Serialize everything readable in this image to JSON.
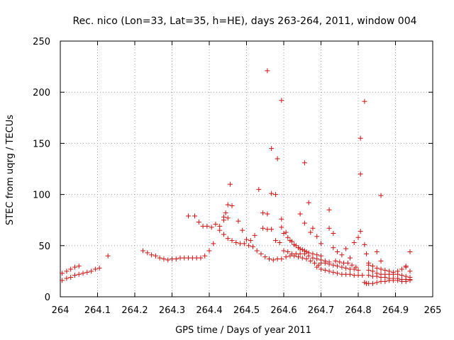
{
  "chart_data": {
    "type": "scatter",
    "title": "Rec. nico (Lon=33, Lat=35, h=HE), days 263-264, 2011, window 004",
    "xlabel": "GPS time / Days of year 2011",
    "ylabel": "STEC from uqrg / TECUs",
    "xlim": [
      264,
      265
    ],
    "ylim": [
      0,
      250
    ],
    "x_ticks": [
      264,
      264.1,
      264.2,
      264.3,
      264.4,
      264.5,
      264.6,
      264.7,
      264.8,
      264.9,
      265
    ],
    "y_ticks": [
      0,
      50,
      100,
      150,
      200,
      250
    ],
    "grid": true,
    "marker": "+",
    "colors": {
      "series": "#d01010",
      "grid": "#a0a0a0",
      "axis": "#000000"
    },
    "series": [
      {
        "name": "STEC",
        "points": [
          [
            264.005,
            16
          ],
          [
            264.017,
            18
          ],
          [
            264.028,
            19
          ],
          [
            264.039,
            21
          ],
          [
            264.05,
            22
          ],
          [
            264.061,
            23
          ],
          [
            264.072,
            24
          ],
          [
            264.083,
            25
          ],
          [
            264.094,
            27
          ],
          [
            264.105,
            28
          ],
          [
            264.005,
            23
          ],
          [
            264.017,
            25
          ],
          [
            264.028,
            27
          ],
          [
            264.039,
            29
          ],
          [
            264.05,
            30
          ],
          [
            264.128,
            40
          ],
          [
            264.222,
            45
          ],
          [
            264.234,
            43
          ],
          [
            264.245,
            41
          ],
          [
            264.256,
            40
          ],
          [
            264.267,
            38
          ],
          [
            264.278,
            37
          ],
          [
            264.289,
            36
          ],
          [
            264.3,
            37
          ],
          [
            264.311,
            37
          ],
          [
            264.322,
            38
          ],
          [
            264.333,
            38
          ],
          [
            264.344,
            38
          ],
          [
            264.355,
            38
          ],
          [
            264.366,
            38
          ],
          [
            264.377,
            38
          ],
          [
            264.388,
            40
          ],
          [
            264.4,
            45
          ],
          [
            264.411,
            52
          ],
          [
            264.344,
            79
          ],
          [
            264.361,
            79
          ],
          [
            264.372,
            73
          ],
          [
            264.383,
            69
          ],
          [
            264.394,
            69
          ],
          [
            264.406,
            68
          ],
          [
            264.417,
            71
          ],
          [
            264.428,
            69
          ],
          [
            264.439,
            75
          ],
          [
            264.45,
            77
          ],
          [
            264.428,
            65
          ],
          [
            264.439,
            61
          ],
          [
            264.45,
            57
          ],
          [
            264.461,
            55
          ],
          [
            264.472,
            53
          ],
          [
            264.483,
            52
          ],
          [
            264.494,
            52
          ],
          [
            264.506,
            50
          ],
          [
            264.517,
            49
          ],
          [
            264.439,
            78
          ],
          [
            264.444,
            82
          ],
          [
            264.45,
            90
          ],
          [
            264.461,
            89
          ],
          [
            264.456,
            110
          ],
          [
            264.478,
            74
          ],
          [
            264.489,
            65
          ],
          [
            264.5,
            56
          ],
          [
            264.511,
            55
          ],
          [
            264.522,
            60
          ],
          [
            264.533,
            105
          ],
          [
            264.544,
            82
          ],
          [
            264.556,
            81
          ],
          [
            264.567,
            101
          ],
          [
            264.578,
            100
          ],
          [
            264.583,
            135
          ],
          [
            264.567,
            145
          ],
          [
            264.556,
            221
          ],
          [
            264.594,
            192
          ],
          [
            264.528,
            45
          ],
          [
            264.539,
            42
          ],
          [
            264.55,
            39
          ],
          [
            264.561,
            37
          ],
          [
            264.572,
            36
          ],
          [
            264.583,
            37
          ],
          [
            264.594,
            37
          ],
          [
            264.606,
            39
          ],
          [
            264.617,
            40
          ],
          [
            264.628,
            40
          ],
          [
            264.639,
            39
          ],
          [
            264.65,
            38
          ],
          [
            264.661,
            37
          ],
          [
            264.672,
            35
          ],
          [
            264.683,
            33
          ],
          [
            264.694,
            31
          ],
          [
            264.544,
            67
          ],
          [
            264.556,
            66
          ],
          [
            264.567,
            66
          ],
          [
            264.578,
            55
          ],
          [
            264.589,
            53
          ],
          [
            264.594,
            76
          ],
          [
            264.6,
            62
          ],
          [
            264.611,
            58
          ],
          [
            264.622,
            54
          ],
          [
            264.633,
            50
          ],
          [
            264.644,
            47
          ],
          [
            264.656,
            45
          ],
          [
            264.667,
            43
          ],
          [
            264.678,
            42
          ],
          [
            264.689,
            41
          ],
          [
            264.7,
            40
          ],
          [
            264.594,
            68
          ],
          [
            264.606,
            63
          ],
          [
            264.617,
            55
          ],
          [
            264.628,
            51
          ],
          [
            264.639,
            48
          ],
          [
            264.65,
            46
          ],
          [
            264.661,
            44
          ],
          [
            264.644,
            81
          ],
          [
            264.656,
            131
          ],
          [
            264.667,
            92
          ],
          [
            264.656,
            72
          ],
          [
            264.678,
            67
          ],
          [
            264.672,
            63
          ],
          [
            264.689,
            59
          ],
          [
            264.7,
            52
          ],
          [
            264.6,
            45
          ],
          [
            264.611,
            44
          ],
          [
            264.622,
            42
          ],
          [
            264.633,
            42
          ],
          [
            264.644,
            42
          ],
          [
            264.656,
            42
          ],
          [
            264.667,
            40
          ],
          [
            264.678,
            38
          ],
          [
            264.689,
            37
          ],
          [
            264.7,
            36
          ],
          [
            264.711,
            35
          ],
          [
            264.722,
            34
          ],
          [
            264.722,
            85
          ],
          [
            264.722,
            67
          ],
          [
            264.733,
            62
          ],
          [
            264.733,
            48
          ],
          [
            264.744,
            44
          ],
          [
            264.756,
            41
          ],
          [
            264.767,
            47
          ],
          [
            264.778,
            38
          ],
          [
            264.789,
            53
          ],
          [
            264.8,
            58
          ],
          [
            264.806,
            64
          ],
          [
            264.806,
            120
          ],
          [
            264.806,
            155
          ],
          [
            264.817,
            191
          ],
          [
            264.817,
            51
          ],
          [
            264.822,
            42
          ],
          [
            264.689,
            29
          ],
          [
            264.7,
            27
          ],
          [
            264.711,
            26
          ],
          [
            264.722,
            25
          ],
          [
            264.733,
            24
          ],
          [
            264.744,
            23
          ],
          [
            264.756,
            22
          ],
          [
            264.767,
            22
          ],
          [
            264.778,
            22
          ],
          [
            264.789,
            21
          ],
          [
            264.8,
            21
          ],
          [
            264.811,
            21
          ],
          [
            264.7,
            33
          ],
          [
            264.711,
            33
          ],
          [
            264.722,
            32
          ],
          [
            264.733,
            31
          ],
          [
            264.744,
            30
          ],
          [
            264.756,
            29
          ],
          [
            264.767,
            28
          ],
          [
            264.778,
            27
          ],
          [
            264.789,
            27
          ],
          [
            264.8,
            26
          ],
          [
            264.739,
            35
          ],
          [
            264.75,
            34
          ],
          [
            264.761,
            33
          ],
          [
            264.772,
            33
          ],
          [
            264.783,
            31
          ],
          [
            264.794,
            29
          ],
          [
            264.817,
            14
          ],
          [
            264.822,
            13
          ],
          [
            264.828,
            13
          ],
          [
            264.839,
            13
          ],
          [
            264.85,
            14
          ],
          [
            264.861,
            15
          ],
          [
            264.872,
            15
          ],
          [
            264.883,
            16
          ],
          [
            264.894,
            16
          ],
          [
            264.906,
            16
          ],
          [
            264.917,
            15
          ],
          [
            264.928,
            15
          ],
          [
            264.939,
            16
          ],
          [
            264.828,
            21
          ],
          [
            264.839,
            20
          ],
          [
            264.85,
            20
          ],
          [
            264.861,
            19
          ],
          [
            264.872,
            19
          ],
          [
            264.883,
            18
          ],
          [
            264.894,
            18
          ],
          [
            264.906,
            18
          ],
          [
            264.917,
            17
          ],
          [
            264.928,
            17
          ],
          [
            264.939,
            17
          ],
          [
            264.828,
            26
          ],
          [
            264.839,
            25
          ],
          [
            264.85,
            23
          ],
          [
            264.861,
            22
          ],
          [
            264.872,
            22
          ],
          [
            264.883,
            22
          ],
          [
            264.894,
            22
          ],
          [
            264.906,
            22
          ],
          [
            264.917,
            21
          ],
          [
            264.928,
            20
          ],
          [
            264.939,
            19
          ],
          [
            264.828,
            31
          ],
          [
            264.839,
            30
          ],
          [
            264.85,
            28
          ],
          [
            264.861,
            27
          ],
          [
            264.872,
            26
          ],
          [
            264.883,
            25
          ],
          [
            264.894,
            24
          ],
          [
            264.906,
            25
          ],
          [
            264.917,
            27
          ],
          [
            264.928,
            30
          ],
          [
            264.939,
            25
          ],
          [
            264.85,
            44
          ],
          [
            264.861,
            35
          ],
          [
            264.861,
            99
          ],
          [
            264.939,
            44
          ],
          [
            264.928,
            29
          ],
          [
            264.828,
            33
          ]
        ]
      }
    ]
  }
}
